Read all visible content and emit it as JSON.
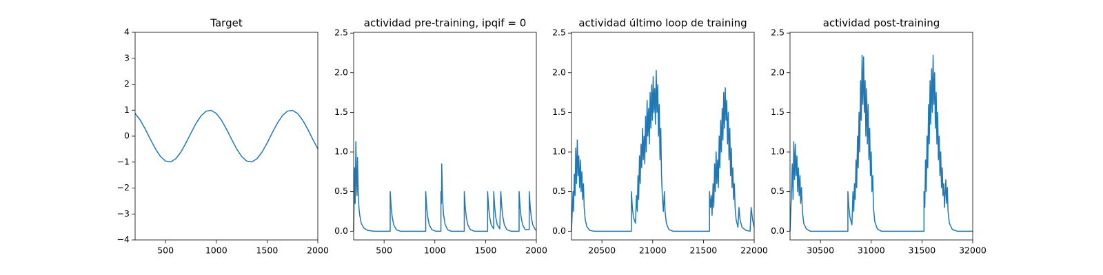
{
  "chart_data": [
    {
      "type": "line",
      "title": "Target",
      "color": "#1f77b4",
      "x": [
        200,
        250,
        300,
        350,
        400,
        450,
        500,
        550,
        600,
        650,
        700,
        750,
        800,
        850,
        900,
        950,
        1000,
        1050,
        1100,
        1150,
        1200,
        1250,
        1300,
        1350,
        1400,
        1450,
        1500,
        1550,
        1600,
        1650,
        1700,
        1750,
        1800,
        1850,
        1900,
        1950,
        2000
      ],
      "values": [
        0.873,
        0.619,
        0.271,
        -0.118,
        -0.489,
        -0.785,
        -0.962,
        -0.993,
        -0.873,
        -0.619,
        -0.271,
        0.118,
        0.489,
        0.785,
        0.962,
        0.993,
        0.873,
        0.619,
        0.271,
        -0.118,
        -0.489,
        -0.785,
        -0.962,
        -0.993,
        -0.873,
        -0.619,
        -0.271,
        0.118,
        0.489,
        0.785,
        0.962,
        0.993,
        0.873,
        0.619,
        0.271,
        -0.118,
        -0.489
      ],
      "xlim": [
        200,
        2000
      ],
      "xticks": [
        500,
        1000,
        1500,
        2000
      ],
      "ylim": [
        -4,
        4
      ],
      "yticks": [
        {
          "value": -4,
          "label": "−4"
        },
        {
          "value": -3,
          "label": "−3"
        },
        {
          "value": -2,
          "label": "−2"
        },
        {
          "value": -1,
          "label": "−1"
        },
        0,
        1,
        2,
        3,
        4
      ]
    },
    {
      "type": "line",
      "title": "actividad pre-training, ipqif = 0",
      "color": "#1f77b4",
      "x": [
        200,
        210,
        215,
        222,
        228,
        233,
        238,
        245,
        252,
        260,
        275,
        300,
        340,
        400,
        560,
        560,
        570,
        580,
        595,
        620,
        660,
        910,
        910,
        920,
        930,
        945,
        970,
        1010,
        1060,
        1060,
        1065,
        1068,
        1075,
        1085,
        1100,
        1125,
        1160,
        1290,
        1290,
        1300,
        1310,
        1325,
        1350,
        1390,
        1520,
        1520,
        1530,
        1540,
        1555,
        1580,
        1580,
        1590,
        1600,
        1615,
        1640,
        1650,
        1660,
        1670,
        1685,
        1710,
        1750,
        1830,
        1830,
        1840,
        1850,
        1865,
        1890,
        1930,
        1930,
        1940,
        1950,
        1965,
        1990,
        2000
      ],
      "values": [
        0,
        0.8,
        0.35,
        1.13,
        0.6,
        0.45,
        0.93,
        0.5,
        0.3,
        0.2,
        0.1,
        0.04,
        0.01,
        0,
        0,
        0.5,
        0.3,
        0.18,
        0.08,
        0.02,
        0,
        0,
        0.5,
        0.3,
        0.18,
        0.08,
        0.02,
        0,
        0,
        0.5,
        0.35,
        0.85,
        0.45,
        0.22,
        0.09,
        0.02,
        0,
        0,
        0.5,
        0.3,
        0.18,
        0.08,
        0.02,
        0,
        0,
        0.5,
        0.3,
        0.18,
        0.08,
        0.03,
        0.5,
        0.3,
        0.18,
        0.08,
        0.03,
        0.5,
        0.3,
        0.18,
        0.08,
        0.02,
        0,
        0,
        0.5,
        0.3,
        0.18,
        0.08,
        0.02,
        0.02,
        0.5,
        0.3,
        0.18,
        0.08,
        0.02,
        0.01
      ],
      "xlim": [
        200,
        2000
      ],
      "xticks": [
        500,
        1000,
        1500,
        2000
      ],
      "ylim": [
        -0.11,
        2.51
      ],
      "yticks": [
        {
          "value": 0,
          "label": "0.0"
        },
        0.5,
        {
          "value": 1,
          "label": "1.0"
        },
        1.5,
        {
          "value": 2,
          "label": "2.0"
        },
        2.5
      ]
    },
    {
      "type": "line",
      "title": "actividad último loop de training",
      "color": "#1f77b4",
      "x": [
        20200,
        20215,
        20220,
        20228,
        20235,
        20242,
        20250,
        20257,
        20265,
        20272,
        20280,
        20288,
        20295,
        20302,
        20310,
        20318,
        20325,
        20335,
        20350,
        20380,
        20420,
        20790,
        20790,
        20800,
        20810,
        20830,
        20840,
        20848,
        20855,
        20862,
        20870,
        20877,
        20885,
        20892,
        20900,
        20907,
        20915,
        20922,
        20930,
        20937,
        20945,
        20952,
        20960,
        20967,
        20975,
        20982,
        20990,
        20997,
        21005,
        21012,
        21020,
        21027,
        21035,
        21042,
        21050,
        21057,
        21065,
        21072,
        21080,
        21087,
        21095,
        21105,
        21115,
        21122,
        21135,
        21160,
        21200,
        21560,
        21560,
        21570,
        21578,
        21585,
        21595,
        21602,
        21610,
        21617,
        21625,
        21632,
        21640,
        21647,
        21655,
        21662,
        21670,
        21677,
        21685,
        21692,
        21700,
        21707,
        21715,
        21722,
        21730,
        21737,
        21745,
        21752,
        21760,
        21767,
        21775,
        21782,
        21790,
        21797,
        21805,
        21812,
        21822,
        21840,
        21850,
        21860,
        21880,
        21920,
        21960,
        21970,
        21985,
        22000
      ],
      "values": [
        0,
        0.5,
        0.25,
        0.72,
        0.45,
        1.05,
        0.6,
        1.15,
        0.7,
        0.95,
        0.55,
        0.9,
        0.5,
        0.75,
        0.4,
        0.6,
        0.3,
        0.15,
        0.06,
        0.01,
        0,
        0,
        0.5,
        0.3,
        0.18,
        0.1,
        0.45,
        0.25,
        0.7,
        0.4,
        0.95,
        0.6,
        1.1,
        0.8,
        1.3,
        0.9,
        1.2,
        0.85,
        1.45,
        1.0,
        1.65,
        1.2,
        1.55,
        1.1,
        1.75,
        1.3,
        1.85,
        1.4,
        1.95,
        1.5,
        1.8,
        1.35,
        2.03,
        1.5,
        1.85,
        1.2,
        1.6,
        0.9,
        1.3,
        0.7,
        0.45,
        0.25,
        0.5,
        0.25,
        0.1,
        0.02,
        0,
        0,
        0.5,
        0.3,
        0.45,
        0.2,
        0.6,
        0.3,
        0.85,
        0.5,
        1.0,
        0.6,
        0.9,
        0.55,
        1.2,
        0.8,
        1.4,
        1.0,
        1.55,
        1.15,
        1.75,
        1.3,
        1.81,
        1.4,
        1.65,
        1.1,
        1.5,
        0.9,
        1.3,
        0.7,
        1.05,
        0.55,
        0.8,
        0.4,
        0.6,
        0.3,
        0.15,
        0.05,
        0.3,
        0.15,
        0.05,
        0.01,
        0,
        0.3,
        0.14,
        0.05
      ],
      "xlim": [
        20200,
        22000
      ],
      "xticks": [
        20500,
        21000,
        21500,
        22000
      ],
      "ylim": [
        -0.11,
        2.51
      ],
      "yticks": [
        {
          "value": 0,
          "label": "0.0"
        },
        0.5,
        {
          "value": 1,
          "label": "1.0"
        },
        1.5,
        {
          "value": 2,
          "label": "2.0"
        },
        2.5
      ]
    },
    {
      "type": "line",
      "title": "actividad post-training",
      "color": "#1f77b4",
      "x": [
        30200,
        30215,
        30222,
        30230,
        30237,
        30245,
        30252,
        30260,
        30268,
        30275,
        30283,
        30290,
        30298,
        30305,
        30313,
        30322,
        30335,
        30360,
        30400,
        30770,
        30770,
        30780,
        30790,
        30810,
        30820,
        30828,
        30835,
        30842,
        30850,
        30857,
        30865,
        30872,
        30880,
        30887,
        30895,
        30902,
        30910,
        30917,
        30925,
        30932,
        30940,
        30947,
        30955,
        30962,
        30970,
        30977,
        30985,
        30992,
        31000,
        31007,
        31015,
        31022,
        31035,
        31060,
        31100,
        31520,
        31520,
        31528,
        31535,
        31542,
        31550,
        31557,
        31565,
        31572,
        31580,
        31587,
        31595,
        31602,
        31610,
        31617,
        31625,
        31632,
        31640,
        31647,
        31655,
        31662,
        31670,
        31677,
        31685,
        31692,
        31700,
        31707,
        31715,
        31722,
        31735,
        31742,
        31750,
        31757,
        31770,
        31800,
        31850,
        32000
      ],
      "values": [
        0,
        0.5,
        0.85,
        0.4,
        1.13,
        0.65,
        1.1,
        0.7,
        0.95,
        0.5,
        0.8,
        0.45,
        0.7,
        0.35,
        0.55,
        0.25,
        0.1,
        0.03,
        0,
        0,
        0.5,
        0.3,
        0.18,
        0.08,
        0.5,
        0.25,
        0.6,
        0.4,
        0.9,
        0.55,
        1.2,
        0.8,
        1.5,
        1.0,
        1.9,
        1.4,
        2.22,
        1.6,
        2.2,
        1.5,
        1.9,
        1.2,
        1.8,
        1.1,
        1.6,
        0.9,
        1.3,
        0.7,
        1.0,
        0.5,
        0.7,
        0.3,
        0.12,
        0.03,
        0,
        0,
        0.5,
        0.3,
        0.9,
        0.5,
        1.2,
        0.8,
        1.6,
        1.1,
        1.9,
        1.35,
        2.05,
        1.5,
        2.22,
        1.6,
        2.0,
        1.3,
        1.75,
        1.1,
        1.5,
        0.9,
        1.2,
        0.7,
        1.0,
        0.55,
        0.8,
        0.45,
        0.6,
        0.3,
        0.65,
        0.35,
        0.55,
        0.25,
        0.1,
        0.02,
        0,
        0
      ],
      "xlim": [
        30200,
        32000
      ],
      "xticks": [
        30500,
        31000,
        31500,
        32000
      ],
      "ylim": [
        -0.11,
        2.51
      ],
      "yticks": [
        {
          "value": 0,
          "label": "0.0"
        },
        0.5,
        {
          "value": 1,
          "label": "1.0"
        },
        1.5,
        {
          "value": 2,
          "label": "2.0"
        },
        2.5
      ]
    }
  ]
}
